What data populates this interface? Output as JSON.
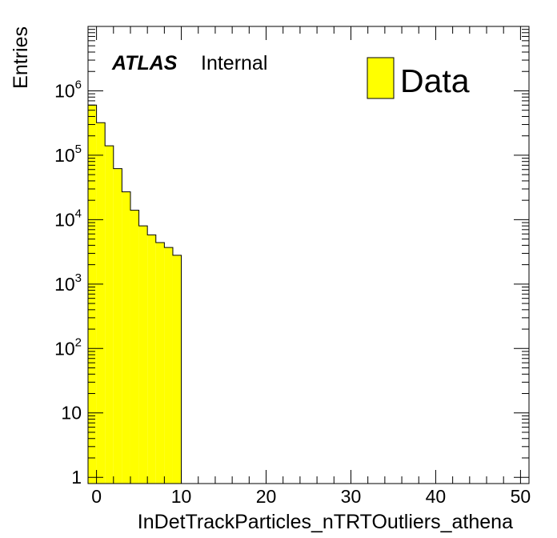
{
  "chart_data": {
    "type": "bar",
    "style": "histogram",
    "xlabel": "InDetTrackParticles_nTRTOutliers_athena",
    "ylabel": "Entries",
    "xlim": [
      -1,
      51
    ],
    "ylim": [
      0.8,
      10000000
    ],
    "yscale": "log",
    "bin_width": 1,
    "bin_lows": [
      -1,
      0,
      1,
      2,
      3,
      4,
      5,
      6,
      7,
      8,
      9,
      10
    ],
    "values": [
      600000,
      320000,
      140000,
      62000,
      27000,
      14000,
      8000,
      5800,
      4400,
      3700,
      2800,
      0
    ],
    "x_ticks": [
      {
        "v": 0,
        "label": "0"
      },
      {
        "v": 10,
        "label": "10"
      },
      {
        "v": 20,
        "label": "20"
      },
      {
        "v": 30,
        "label": "30"
      },
      {
        "v": 40,
        "label": "40"
      },
      {
        "v": 50,
        "label": "50"
      }
    ],
    "y_ticks": [
      {
        "v": 1,
        "label": "1"
      },
      {
        "v": 10,
        "label": "10"
      },
      {
        "v": 100,
        "base": "10",
        "exp": "2"
      },
      {
        "v": 1000,
        "base": "10",
        "exp": "3"
      },
      {
        "v": 10000,
        "base": "10",
        "exp": "4"
      },
      {
        "v": 100000,
        "base": "10",
        "exp": "5"
      },
      {
        "v": 1000000,
        "base": "10",
        "exp": "6"
      }
    ],
    "fill_color": "#ffff00",
    "line_color": "#000000",
    "legend": {
      "label": "Data",
      "position": "top-right"
    },
    "atlas_label": {
      "bold": "ATLAS",
      "text": "Internal"
    }
  }
}
